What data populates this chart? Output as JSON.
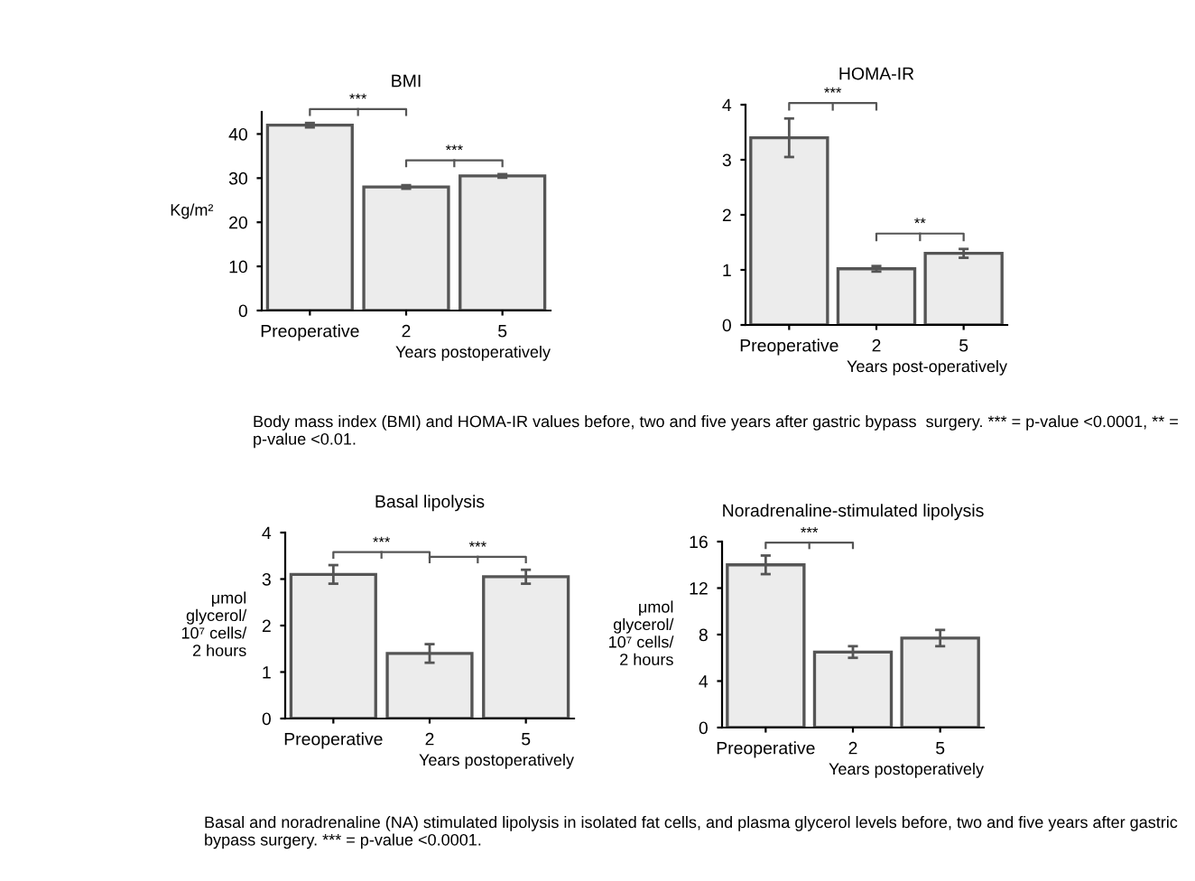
{
  "chart_data": [
    {
      "type": "bar",
      "title": "BMI",
      "ylabel": "Kg/m²",
      "xlabel": "Years postoperatively",
      "categories": [
        "Preoperative",
        "2",
        "5"
      ],
      "values": [
        42,
        28,
        30.5
      ],
      "errors": [
        0.5,
        0.4,
        0.4
      ],
      "color": "#ececec",
      "ylim": [
        0,
        45
      ],
      "yticks": [
        0,
        10,
        20,
        30,
        40
      ],
      "grid": false,
      "annotations": [
        "***",
        "***"
      ]
    },
    {
      "type": "bar",
      "title": "HOMA-IR",
      "xlabel": "Years post-operatively",
      "categories": [
        "Preoperative",
        "2",
        "5"
      ],
      "values": [
        3.4,
        1.02,
        1.3
      ],
      "errors": [
        0.35,
        0.05,
        0.08
      ],
      "color": "#ececec",
      "ylim": [
        0,
        4
      ],
      "yticks": [
        0,
        1,
        2,
        3,
        4
      ],
      "grid": false,
      "annotations": [
        "***",
        "**"
      ]
    },
    {
      "type": "other",
      "annotations": [
        "Body mass index (BMI) and HOMA-IR values before, two and five years after gastric bypass  surgery. *** = p-value <0.0001, ** = p-value <0.01."
      ]
    },
    {
      "type": "bar",
      "title": "Basal lipolysis",
      "ylabel": "μmol\nglycerol/\n10⁷ cells/\n2 hours",
      "xlabel": "Years postoperatively",
      "categories": [
        "Preoperative",
        "2",
        "5"
      ],
      "values": [
        3.1,
        1.4,
        3.05
      ],
      "errors": [
        0.2,
        0.2,
        0.15
      ],
      "color": "#ececec",
      "ylim": [
        0,
        4
      ],
      "yticks": [
        0,
        1,
        2,
        3,
        4
      ],
      "grid": false,
      "annotations": [
        "***",
        "***"
      ]
    },
    {
      "type": "bar",
      "title": "Noradrenaline-stimulated lipolysis",
      "ylabel": "μmol\nglycerol/\n10⁷ cells/\n2 hours",
      "xlabel": "Years postoperatively",
      "categories": [
        "Preoperative",
        "2",
        "5"
      ],
      "values": [
        14,
        6.5,
        7.7
      ],
      "errors": [
        0.8,
        0.5,
        0.7
      ],
      "color": "#ececec",
      "ylim": [
        0,
        16
      ],
      "yticks": [
        0,
        4,
        8,
        12,
        16
      ],
      "grid": false,
      "annotations": [
        "***"
      ]
    },
    {
      "type": "other",
      "annotations": [
        "Basal and noradrenaline (NA) stimulated lipolysis in isolated fat cells, and plasma glycerol levels before, two and five years after gastric bypass surgery. *** = p-value <0.0001."
      ]
    }
  ]
}
